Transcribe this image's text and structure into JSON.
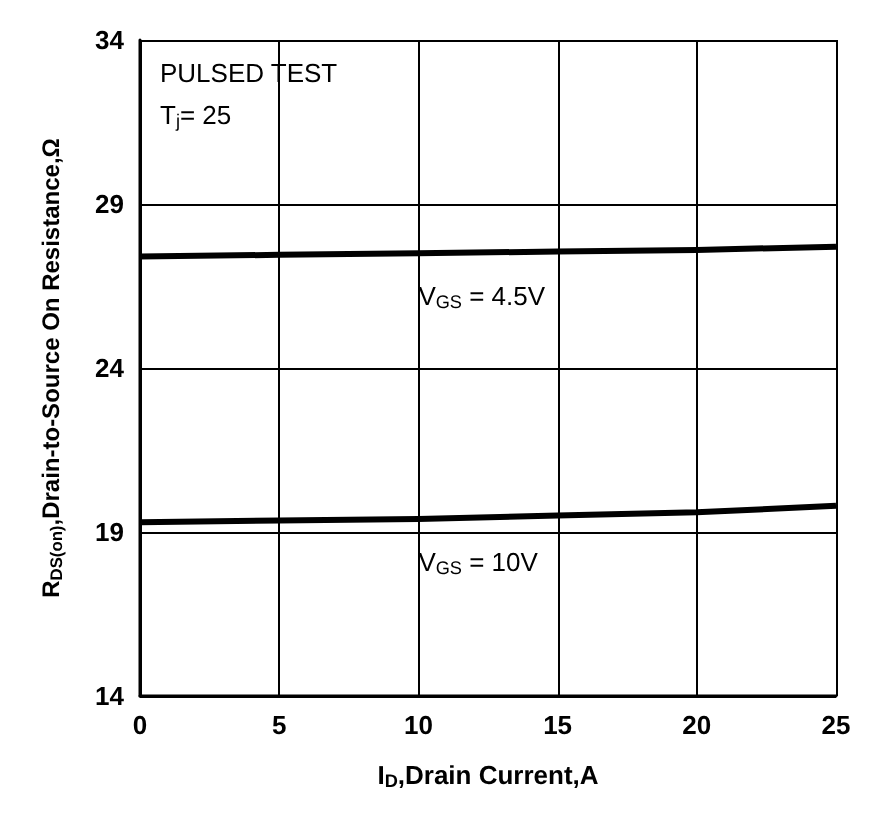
{
  "chart_data": {
    "type": "line",
    "xlabel": "I$_{D}$,Drain Current,A",
    "ylabel": "R$_{DS(on)}$,Drain-to-Source On Resistance,Ω",
    "annotations": [
      "PULSED TEST",
      "T$_{j}$= 25"
    ],
    "x": [
      0,
      5,
      10,
      15,
      20,
      25
    ],
    "series": [
      {
        "name": "V$_{GS}$ = 4.5V",
        "color": "#000000",
        "values": [
          27.4,
          27.45,
          27.5,
          27.55,
          27.6,
          27.7
        ]
      },
      {
        "name": "V$_{GS}$ = 10V",
        "color": "#000000",
        "values": [
          19.3,
          19.35,
          19.4,
          19.5,
          19.6,
          19.8
        ]
      }
    ],
    "xlim": [
      0,
      25
    ],
    "xticks": [
      0,
      5,
      10,
      15,
      20,
      25
    ],
    "ylim": [
      14,
      34
    ],
    "yticks": [
      14,
      19,
      24,
      29,
      34
    ],
    "grid": true,
    "marker": "none",
    "line_style": "solid",
    "legend": false
  }
}
